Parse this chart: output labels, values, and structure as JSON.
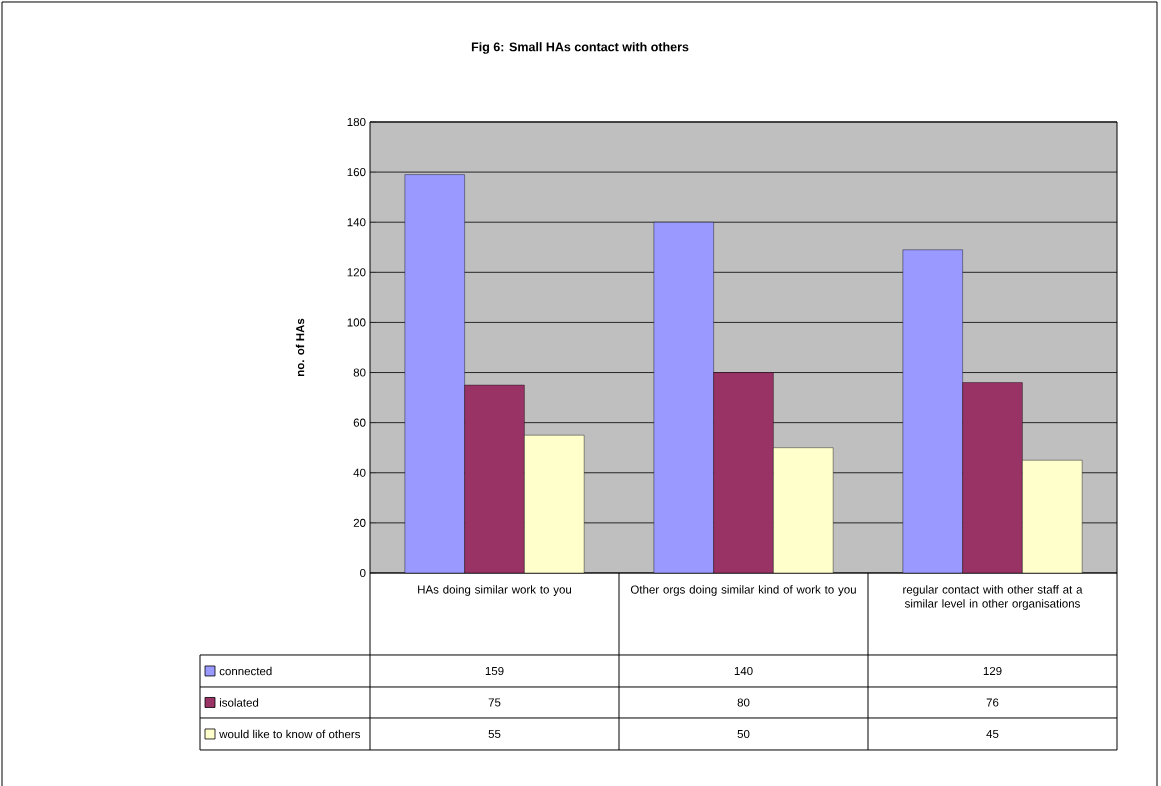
{
  "chart_data": {
    "type": "bar",
    "title": "Fig 6: Small HAs contact with others",
    "ylabel": "no. of HAs",
    "categories": [
      "HAs doing similar work to you",
      "Other orgs doing similar kind of work to you",
      "regular contact with other staff at a similar level in other organisations"
    ],
    "series": [
      {
        "name": "connected",
        "color": "#9999ff",
        "values": [
          159,
          140,
          129
        ]
      },
      {
        "name": "isolated",
        "color": "#993366",
        "values": [
          75,
          80,
          76
        ]
      },
      {
        "name": "would like to know of others",
        "color": "#ffffcc",
        "values": [
          55,
          50,
          45
        ]
      }
    ],
    "ylim": [
      0,
      180
    ],
    "yticks": [
      0,
      20,
      40,
      60,
      80,
      100,
      120,
      140,
      160,
      180
    ],
    "grid": "y",
    "legend": "bottom",
    "data_labels": true
  }
}
